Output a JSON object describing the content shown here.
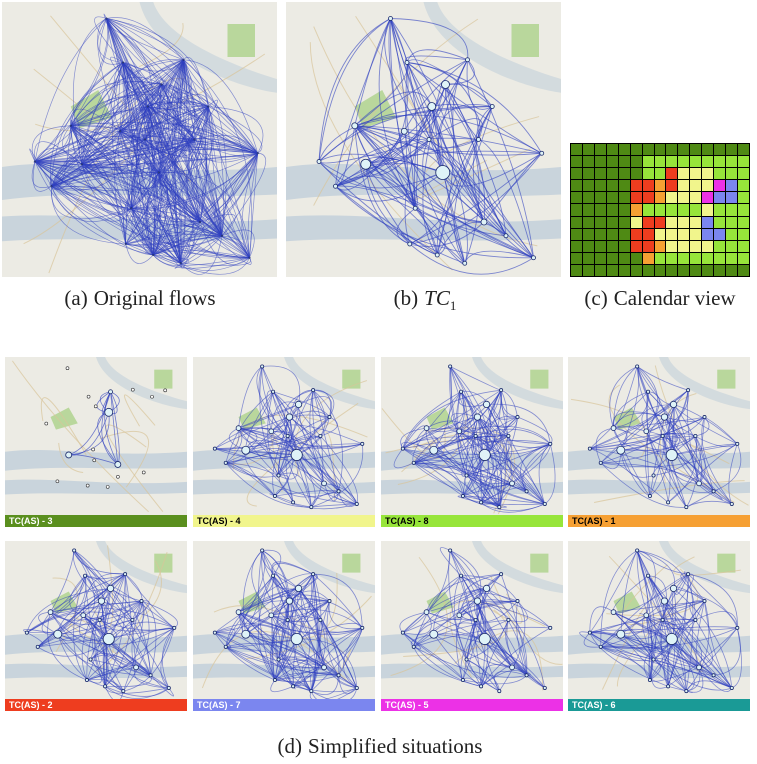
{
  "captions": {
    "a": {
      "label": "(a)",
      "text": "Original flows"
    },
    "b": {
      "label": "(b)",
      "text_italic": "TC",
      "text_sub": "1"
    },
    "c": {
      "label": "(c)",
      "text": "Calendar view"
    },
    "d": {
      "label": "(d)",
      "text": "Simplified situations"
    }
  },
  "situations": [
    {
      "label": "TC(AS) - 3",
      "color": "#5a8f1e",
      "text_color": "#ffffff"
    },
    {
      "label": "TC(AS) - 4",
      "color": "#f1f58c",
      "text_color": "#000000"
    },
    {
      "label": "TC(AS) - 8",
      "color": "#97e53a",
      "text_color": "#000000"
    },
    {
      "label": "TC(AS) - 1",
      "color": "#f6a033",
      "text_color": "#000000"
    },
    {
      "label": "TC(AS) - 2",
      "color": "#ee3d1f",
      "text_color": "#ffffff"
    },
    {
      "label": "TC(AS) - 7",
      "color": "#7b86ef",
      "text_color": "#ffffff"
    },
    {
      "label": "TC(AS) - 5",
      "color": "#ec31e6",
      "text_color": "#ffffff"
    },
    {
      "label": "TC(AS) - 6",
      "color": "#1a9a96",
      "text_color": "#ffffff"
    }
  ],
  "calendar": {
    "colors": {
      "3": "#4f8a14",
      "4": "#f1f58c",
      "8": "#97e53a",
      "1": "#f6a033",
      "2": "#ee3d1f",
      "7": "#7b86ef",
      "5": "#ec31e6",
      "6": "#1a9a96"
    },
    "rows": [
      "333333333333333",
      "333333888888888",
      "333333882444888",
      "333332212444578",
      "333332214445778",
      "333331888884888",
      "333334224447888",
      "333332244447788",
      "333332214444888",
      "333333188888888",
      "333333333333333"
    ]
  },
  "map_colors": {
    "land": "#ecebe4",
    "water": "#c9d4dc",
    "park": "#b9d79c",
    "road": "#d9c49a",
    "flow": "#2f3fbf",
    "node_fill": "#dff3f7"
  }
}
